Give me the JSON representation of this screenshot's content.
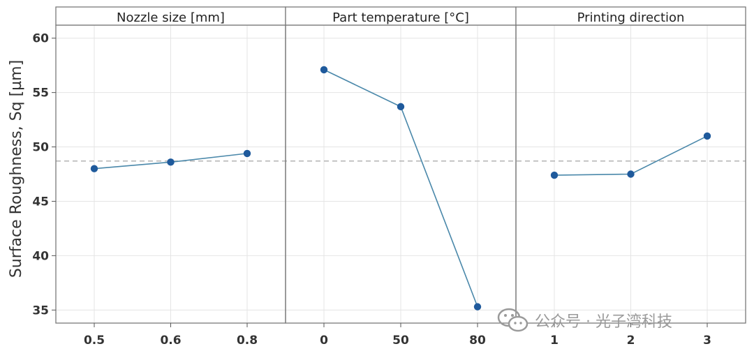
{
  "chart_data": {
    "type": "line",
    "ylabel": "Surface Roughness, Sq [µm]",
    "ylim": [
      33.8,
      61.2
    ],
    "yticks": [
      35,
      40,
      45,
      50,
      55,
      60
    ],
    "mean": 48.7,
    "grid": true,
    "panels": [
      {
        "title": "Nozzle size [mm]",
        "categories": [
          "0.5",
          "0.6",
          "0.8"
        ],
        "values": [
          48.0,
          48.6,
          49.4
        ]
      },
      {
        "title": "Part temperature [°C]",
        "categories": [
          "0",
          "50",
          "80"
        ],
        "values": [
          57.1,
          53.7,
          35.3
        ]
      },
      {
        "title": "Printing direction",
        "categories": [
          "1",
          "2",
          "3"
        ],
        "values": [
          47.4,
          47.5,
          51.0
        ]
      }
    ]
  },
  "watermark": {
    "text": "公众号 · 光子湾科技",
    "icon": "wechat-icon"
  }
}
